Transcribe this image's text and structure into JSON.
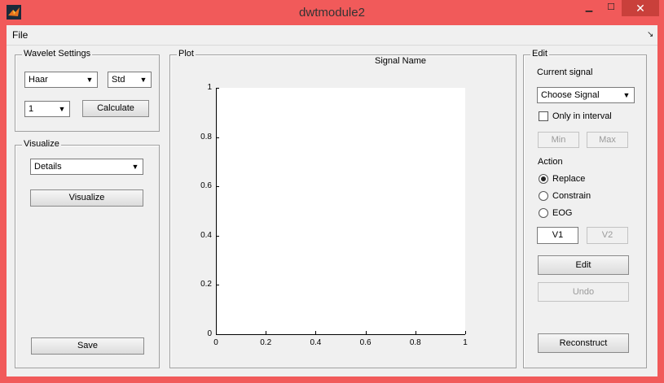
{
  "window": {
    "title": "dwtmodule2",
    "min": "▁",
    "max": "☐",
    "close": "✕"
  },
  "menu": {
    "file": "File",
    "dock": "↘"
  },
  "wavelet_settings": {
    "title": "Wavelet Settings",
    "wavelet": "Haar",
    "mode": "Std",
    "level": "1",
    "calculate": "Calculate"
  },
  "visualize": {
    "title": "Visualize",
    "option": "Details",
    "button": "Visualize",
    "save": "Save"
  },
  "plot": {
    "title": "Plot",
    "signal_name": "Signal Name",
    "chart_data": {
      "type": "line",
      "series": [],
      "xlim": [
        0,
        1
      ],
      "ylim": [
        0,
        1
      ],
      "x_ticks": [
        "0",
        "0.2",
        "0.4",
        "0.6",
        "0.8",
        "1"
      ],
      "y_ticks": [
        "0",
        "0.2",
        "0.4",
        "0.6",
        "0.8",
        "1"
      ],
      "title": "Signal Name",
      "grid": false
    }
  },
  "edit": {
    "title": "Edit",
    "current_signal_label": "Current signal",
    "signal_select": "Choose Signal",
    "only_interval": "Only in interval",
    "min": "Min",
    "max": "Max",
    "action_label": "Action",
    "replace": "Replace",
    "constrain": "Constrain",
    "eog": "EOG",
    "v1": "V1",
    "v2": "V2",
    "edit_button": "Edit",
    "undo": "Undo",
    "reconstruct": "Reconstruct"
  }
}
